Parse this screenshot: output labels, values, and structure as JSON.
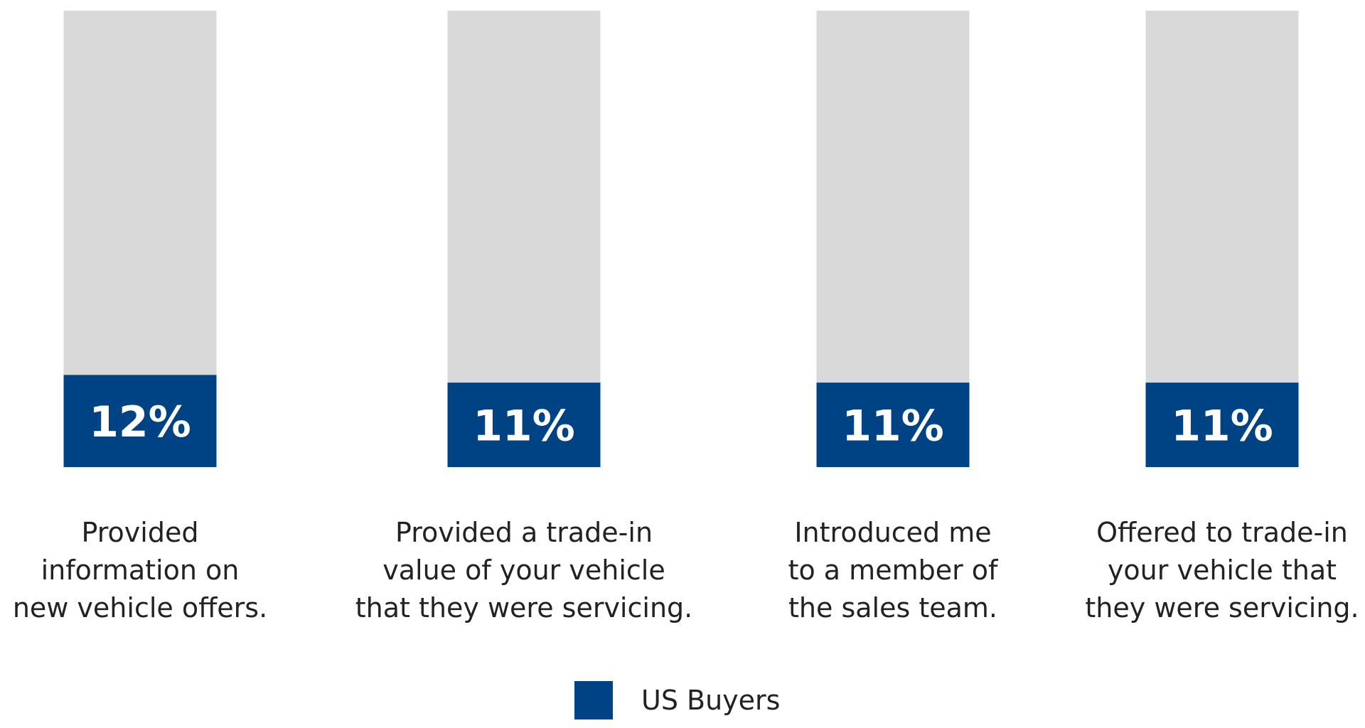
{
  "chart_data": {
    "type": "bar",
    "stacked_background": true,
    "categories": [
      [
        "Provided",
        "information on",
        "new vehicle offers."
      ],
      [
        "Provided a trade-in",
        "value of your vehicle",
        "that they were servicing."
      ],
      [
        "Introduced me",
        "to a member of",
        "the sales team."
      ],
      [
        "Offered to trade-in",
        "your vehicle that",
        "they were servicing."
      ]
    ],
    "series": [
      {
        "name": "US Buyers",
        "values": [
          12,
          11,
          11,
          11
        ],
        "labels": [
          "12%",
          "11%",
          "11%",
          "11%"
        ]
      }
    ],
    "ylim": [
      0,
      100
    ],
    "grid": false,
    "legend_position": "bottom-center",
    "colors": {
      "series": "#004385",
      "background_bar": "#d9d9d9",
      "value_text": "#ffffff",
      "category_text": "#222222"
    }
  }
}
